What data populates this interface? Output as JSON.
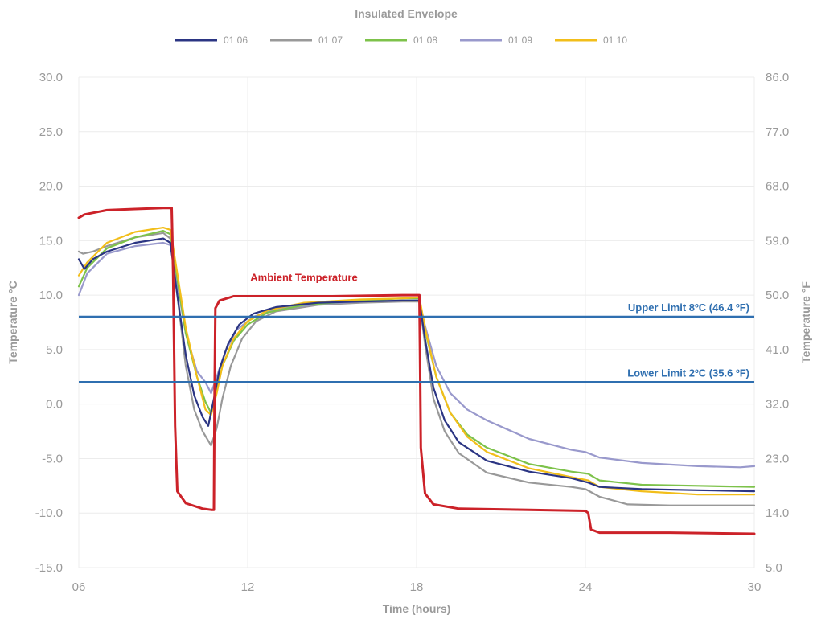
{
  "chart_data": {
    "type": "line",
    "title": "Insulated Envelope",
    "xlabel": "Time (hours)",
    "ylabel": "Temperature °C",
    "ylabel_right": "Temperature °F",
    "xlim": [
      6,
      30
    ],
    "ylim": [
      -15,
      30
    ],
    "y2lim": [
      5,
      86
    ],
    "x_ticks": [
      {
        "value": 6,
        "label": "06"
      },
      {
        "value": 12,
        "label": "12"
      },
      {
        "value": 18,
        "label": "18"
      },
      {
        "value": 24,
        "label": "24"
      },
      {
        "value": 30,
        "label": "30"
      }
    ],
    "y_ticks": [
      {
        "value": 30,
        "label": "30.0"
      },
      {
        "value": 25,
        "label": "25.0"
      },
      {
        "value": 20,
        "label": "20.0"
      },
      {
        "value": 15,
        "label": "15.0"
      },
      {
        "value": 10,
        "label": "10.0"
      },
      {
        "value": 5,
        "label": "5.0"
      },
      {
        "value": 0,
        "label": "0.0"
      },
      {
        "value": -5,
        "label": "-5.0"
      },
      {
        "value": -10,
        "label": "-10.0"
      },
      {
        "value": -15,
        "label": "-15.0"
      }
    ],
    "y2_ticks": [
      {
        "value": 86,
        "label": "86.0"
      },
      {
        "value": 77,
        "label": "77.0"
      },
      {
        "value": 68,
        "label": "68.0"
      },
      {
        "value": 59,
        "label": "59.0"
      },
      {
        "value": 50,
        "label": "50.0"
      },
      {
        "value": 41,
        "label": "41.0"
      },
      {
        "value": 32,
        "label": "32.0"
      },
      {
        "value": 23,
        "label": "23.0"
      },
      {
        "value": 14,
        "label": "14.0"
      },
      {
        "value": 5,
        "label": "5.0"
      }
    ],
    "grid": true,
    "legend_position": "top-center",
    "limits": [
      {
        "name": "Upper Limit 8ºC (46.4 ºF)",
        "value": 8,
        "color": "#2f6fb0"
      },
      {
        "name": "Lower Limit 2ºC (35.6 ºF)",
        "value": 2,
        "color": "#2f6fb0"
      }
    ],
    "series": [
      {
        "name": "01 06",
        "color": "#2b3583",
        "in_legend": true,
        "points": [
          [
            6.0,
            13.3
          ],
          [
            6.2,
            12.4
          ],
          [
            6.5,
            13.3
          ],
          [
            7.0,
            14.0
          ],
          [
            8.0,
            14.8
          ],
          [
            9.0,
            15.2
          ],
          [
            9.25,
            14.8
          ],
          [
            9.5,
            10
          ],
          [
            9.8,
            4.5
          ],
          [
            10.1,
            0.8
          ],
          [
            10.4,
            -1.2
          ],
          [
            10.6,
            -2.0
          ],
          [
            10.8,
            0.5
          ],
          [
            11.0,
            3.2
          ],
          [
            11.3,
            5.5
          ],
          [
            11.7,
            7.3
          ],
          [
            12.2,
            8.3
          ],
          [
            13.0,
            8.9
          ],
          [
            14.5,
            9.3
          ],
          [
            16.0,
            9.4
          ],
          [
            17.5,
            9.5
          ],
          [
            18.1,
            9.5
          ],
          [
            18.3,
            6.0
          ],
          [
            18.6,
            1.5
          ],
          [
            19.0,
            -1.5
          ],
          [
            19.5,
            -3.5
          ],
          [
            20.5,
            -5.2
          ],
          [
            22.0,
            -6.2
          ],
          [
            23.5,
            -6.8
          ],
          [
            24.1,
            -7.2
          ],
          [
            24.5,
            -7.6
          ],
          [
            26.0,
            -7.8
          ],
          [
            28.0,
            -7.9
          ],
          [
            30.0,
            -8.0
          ]
        ]
      },
      {
        "name": "01 07",
        "color": "#999999",
        "in_legend": true,
        "points": [
          [
            6.0,
            14.0
          ],
          [
            6.15,
            13.8
          ],
          [
            6.5,
            14.0
          ],
          [
            7.0,
            14.5
          ],
          [
            8.0,
            15.3
          ],
          [
            9.0,
            15.7
          ],
          [
            9.25,
            15.2
          ],
          [
            9.5,
            10
          ],
          [
            9.8,
            3.5
          ],
          [
            10.1,
            -0.5
          ],
          [
            10.4,
            -2.5
          ],
          [
            10.7,
            -3.8
          ],
          [
            10.9,
            -2.2
          ],
          [
            11.1,
            0.5
          ],
          [
            11.4,
            3.5
          ],
          [
            11.8,
            6.0
          ],
          [
            12.3,
            7.6
          ],
          [
            13.0,
            8.5
          ],
          [
            14.5,
            9.1
          ],
          [
            16.0,
            9.3
          ],
          [
            17.5,
            9.4
          ],
          [
            18.1,
            9.4
          ],
          [
            18.3,
            5.5
          ],
          [
            18.6,
            0.5
          ],
          [
            19.0,
            -2.5
          ],
          [
            19.5,
            -4.5
          ],
          [
            20.5,
            -6.3
          ],
          [
            22.0,
            -7.2
          ],
          [
            23.5,
            -7.6
          ],
          [
            24.0,
            -7.8
          ],
          [
            24.5,
            -8.5
          ],
          [
            25.5,
            -9.2
          ],
          [
            27.0,
            -9.3
          ],
          [
            30.0,
            -9.3
          ]
        ]
      },
      {
        "name": "01 08",
        "color": "#7dc24a",
        "in_legend": true,
        "points": [
          [
            6.0,
            10.8
          ],
          [
            6.3,
            12.5
          ],
          [
            7.0,
            14.3
          ],
          [
            8.0,
            15.3
          ],
          [
            9.0,
            15.9
          ],
          [
            9.25,
            15.6
          ],
          [
            9.5,
            11.5
          ],
          [
            9.8,
            6.5
          ],
          [
            10.2,
            2.5
          ],
          [
            10.5,
            0.2
          ],
          [
            10.7,
            -0.8
          ],
          [
            10.9,
            1.2
          ],
          [
            11.1,
            3.5
          ],
          [
            11.5,
            5.8
          ],
          [
            12.0,
            7.3
          ],
          [
            12.7,
            8.4
          ],
          [
            14.0,
            9.1
          ],
          [
            16.0,
            9.5
          ],
          [
            17.5,
            9.7
          ],
          [
            18.1,
            9.7
          ],
          [
            18.3,
            6.8
          ],
          [
            18.7,
            2.5
          ],
          [
            19.2,
            -0.8
          ],
          [
            19.8,
            -2.8
          ],
          [
            20.5,
            -4.0
          ],
          [
            22.0,
            -5.5
          ],
          [
            23.5,
            -6.2
          ],
          [
            24.1,
            -6.4
          ],
          [
            24.5,
            -7.0
          ],
          [
            26.0,
            -7.4
          ],
          [
            28.0,
            -7.5
          ],
          [
            30.0,
            -7.6
          ]
        ]
      },
      {
        "name": "01 09",
        "color": "#9999cc",
        "in_legend": true,
        "points": [
          [
            6.0,
            10.0
          ],
          [
            6.3,
            12.0
          ],
          [
            7.0,
            13.8
          ],
          [
            8.0,
            14.5
          ],
          [
            9.0,
            14.8
          ],
          [
            9.25,
            14.6
          ],
          [
            9.5,
            11.0
          ],
          [
            9.8,
            6.5
          ],
          [
            10.2,
            3.0
          ],
          [
            10.5,
            2.0
          ],
          [
            10.7,
            1.0
          ],
          [
            10.9,
            2.5
          ],
          [
            11.2,
            4.8
          ],
          [
            11.6,
            6.8
          ],
          [
            12.2,
            8.0
          ],
          [
            13.0,
            8.7
          ],
          [
            14.5,
            9.2
          ],
          [
            16.0,
            9.4
          ],
          [
            17.5,
            9.5
          ],
          [
            18.1,
            9.5
          ],
          [
            18.3,
            7.2
          ],
          [
            18.7,
            3.5
          ],
          [
            19.2,
            1.0
          ],
          [
            19.8,
            -0.5
          ],
          [
            20.5,
            -1.5
          ],
          [
            22.0,
            -3.2
          ],
          [
            23.5,
            -4.2
          ],
          [
            24.0,
            -4.4
          ],
          [
            24.5,
            -4.9
          ],
          [
            26.0,
            -5.4
          ],
          [
            28.0,
            -5.7
          ],
          [
            29.5,
            -5.8
          ],
          [
            30.0,
            -5.7
          ]
        ]
      },
      {
        "name": "01 10",
        "color": "#f2be1a",
        "in_legend": true,
        "points": [
          [
            6.0,
            11.8
          ],
          [
            6.3,
            13.0
          ],
          [
            7.0,
            14.8
          ],
          [
            8.0,
            15.8
          ],
          [
            9.0,
            16.2
          ],
          [
            9.25,
            16.0
          ],
          [
            9.5,
            12.0
          ],
          [
            9.8,
            7.0
          ],
          [
            10.2,
            2.5
          ],
          [
            10.5,
            -0.5
          ],
          [
            10.7,
            -1.0
          ],
          [
            10.9,
            1.0
          ],
          [
            11.1,
            3.5
          ],
          [
            11.5,
            6.0
          ],
          [
            12.0,
            7.6
          ],
          [
            12.7,
            8.6
          ],
          [
            14.0,
            9.3
          ],
          [
            16.0,
            9.6
          ],
          [
            17.5,
            9.7
          ],
          [
            18.1,
            9.8
          ],
          [
            18.3,
            7.0
          ],
          [
            18.7,
            2.5
          ],
          [
            19.2,
            -0.8
          ],
          [
            19.8,
            -3.0
          ],
          [
            20.5,
            -4.4
          ],
          [
            22.0,
            -5.9
          ],
          [
            23.5,
            -6.7
          ],
          [
            24.1,
            -7.0
          ],
          [
            24.5,
            -7.6
          ],
          [
            26.0,
            -8.0
          ],
          [
            28.0,
            -8.3
          ],
          [
            30.0,
            -8.3
          ]
        ]
      },
      {
        "name": "Ambient Temperature",
        "color": "#cc2229",
        "in_legend": false,
        "points": [
          [
            6.0,
            17.1
          ],
          [
            6.2,
            17.4
          ],
          [
            7.0,
            17.8
          ],
          [
            8.0,
            17.9
          ],
          [
            9.0,
            18.0
          ],
          [
            9.3,
            18.0
          ],
          [
            9.35,
            12.0
          ],
          [
            9.42,
            -2.0
          ],
          [
            9.5,
            -8.0
          ],
          [
            9.8,
            -9.1
          ],
          [
            10.4,
            -9.6
          ],
          [
            10.7,
            -9.7
          ],
          [
            10.8,
            -9.7
          ],
          [
            10.82,
            0
          ],
          [
            10.85,
            8.8
          ],
          [
            11.0,
            9.5
          ],
          [
            11.5,
            9.9
          ],
          [
            12.5,
            9.9
          ],
          [
            15.0,
            9.9
          ],
          [
            17.5,
            10.0
          ],
          [
            18.1,
            10.0
          ],
          [
            18.12,
            5.0
          ],
          [
            18.15,
            -4.0
          ],
          [
            18.3,
            -8.2
          ],
          [
            18.6,
            -9.2
          ],
          [
            19.5,
            -9.6
          ],
          [
            22.0,
            -9.7
          ],
          [
            24.0,
            -9.8
          ],
          [
            24.1,
            -10.0
          ],
          [
            24.2,
            -11.5
          ],
          [
            24.5,
            -11.8
          ],
          [
            27.0,
            -11.8
          ],
          [
            30.0,
            -11.9
          ]
        ]
      }
    ],
    "annotations": [
      {
        "text": "Ambient Temperature",
        "x": 14.0,
        "y": 11.0,
        "color": "#cc2229"
      }
    ]
  }
}
